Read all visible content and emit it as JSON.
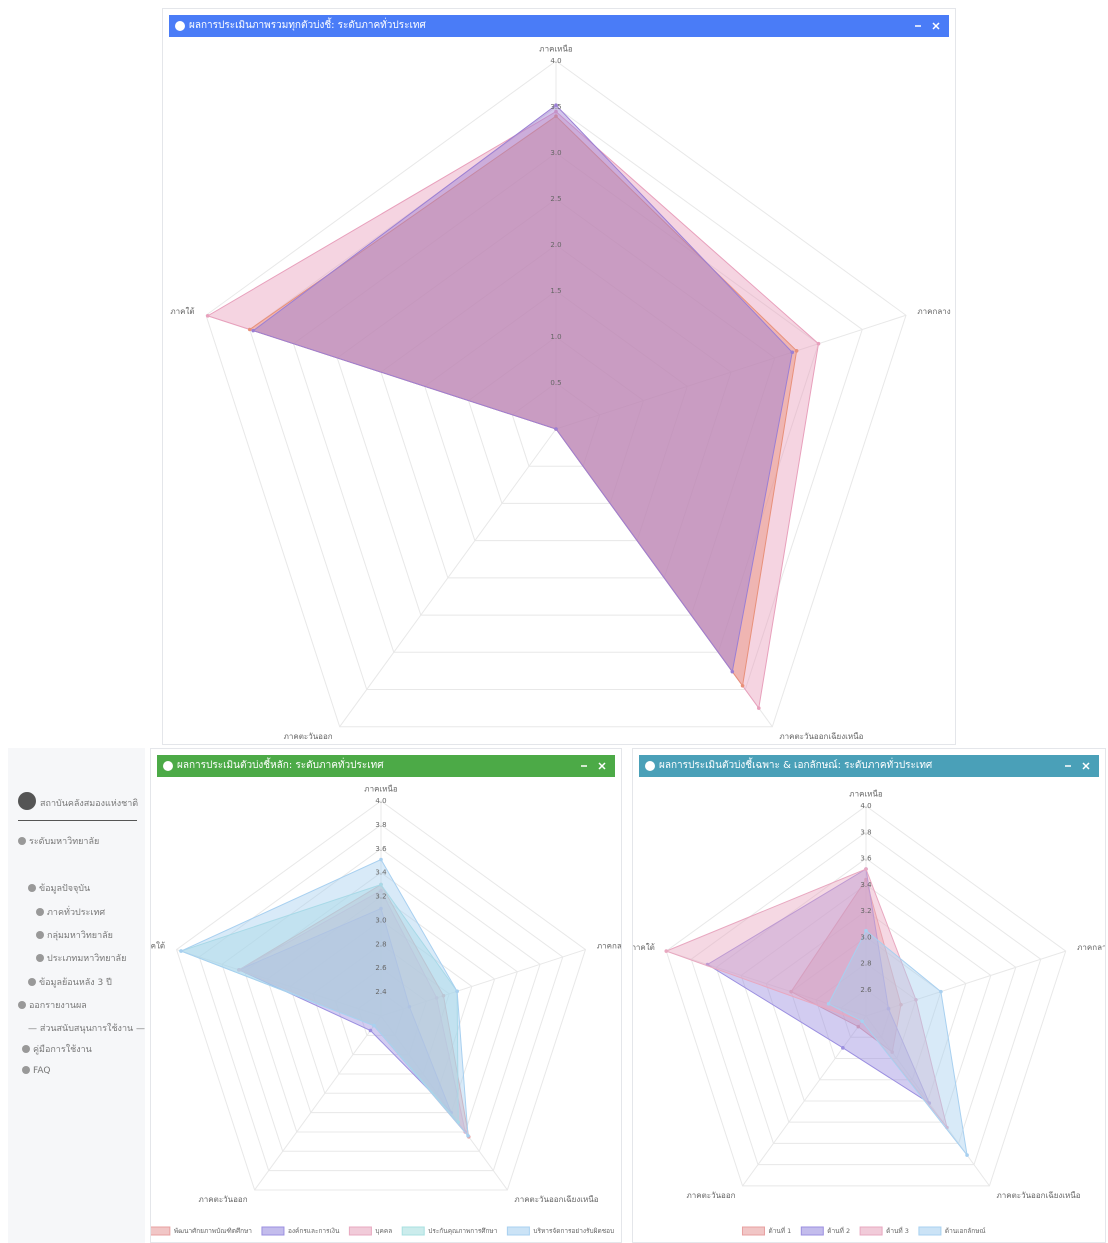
{
  "sidebar": {
    "org": "สถาบันคลังสมองแห่งชาติ",
    "level": "ระดับมหาวิทยาลัย",
    "items": [
      "ข้อมูลปัจจุบัน",
      "ภาคทั่วประเทศ",
      "กลุ่มมหาวิทยาลัย",
      "ประเภทมหาวิทยาลัย",
      "ข้อมูลย้อนหลัง 3 ปี",
      "ออกรายงานผล"
    ],
    "support_heading": "— ส่วนสนับสนุนการใช้งาน —",
    "support_items": [
      "คู่มือการใช้งาน",
      "FAQ"
    ]
  },
  "chart_data": [
    {
      "type": "radar",
      "title": "ผลการประเมินภาพรวมทุกตัวบ่งชี้: ระดับภาคทั่วประเทศ",
      "header_color": "#4a7cf7",
      "categories": [
        "ภาคเหนือ",
        "ภาคกลาง",
        "ภาคตะวันออกเฉียงเหนือ",
        "ภาคตะวันออก",
        "ภาคใต้"
      ],
      "ylim": [
        0,
        4
      ],
      "yticks": [
        0.5,
        {
          "value": 1,
          "label": "1.0"
        },
        1.5,
        {
          "value": 2,
          "label": "2.0"
        },
        2.5,
        {
          "value": 3,
          "label": "3.0"
        },
        3.5,
        {
          "value": 4,
          "label": "4.0"
        }
      ],
      "series": [
        {
          "color": "#e8a0bc",
          "values": [
            3.45,
            3.0,
            3.75,
            0,
            3.98
          ]
        },
        {
          "color": "#e8907a",
          "values": [
            3.4,
            2.75,
            3.45,
            0,
            3.5
          ]
        },
        {
          "color": "#9b7fd4",
          "values": [
            3.52,
            2.7,
            3.26,
            0,
            3.46
          ]
        }
      ]
    },
    {
      "type": "radar",
      "title": "ผลการประเมินตัวบ่งชี้หลัก: ระดับภาคทั่วประเทศ",
      "header_color": "#4caa47",
      "categories": [
        "ภาคเหนือ",
        "ภาคกลาง",
        "ภาคตะวันออกเฉียงเหนือ",
        "ภาคตะวันออก",
        "ภาคใต้"
      ],
      "ylim": [
        2.2,
        4
      ],
      "yticks": [
        2.4,
        2.6,
        2.8,
        {
          "value": 3,
          "label": "3.0"
        },
        3.2,
        3.4,
        3.6,
        3.8,
        {
          "value": 4,
          "label": "4.0"
        }
      ],
      "series": [
        {
          "name": "พัฒนาศักยภาพบัณฑิตศึกษา",
          "color": "#e8a0a0",
          "values": [
            3.3,
            2.75,
            3.45,
            2.3,
            3.45
          ]
        },
        {
          "name": "องค์กรและการเงิน",
          "color": "#9b8fe0",
          "values": [
            3.1,
            2.45,
            3.2,
            2.35,
            3.45
          ]
        },
        {
          "name": "บุคคล",
          "color": "#e8a8c0",
          "values": [
            3.25,
            2.69,
            3.4,
            2.3,
            3.45
          ]
        },
        {
          "name": "ประกันคุณภาพการศึกษา",
          "color": "#a8e0e0",
          "values": [
            3.3,
            2.87,
            3.3,
            2.3,
            3.96
          ]
        },
        {
          "name": "บริหารจัดการอย่างรับผิดชอบ",
          "color": "#a8d0f0",
          "values": [
            3.51,
            2.87,
            3.44,
            2.3,
            3.96
          ]
        }
      ]
    },
    {
      "type": "radar",
      "title": "ผลการประเมินตัวบ่งชี้เฉพาะ & เอกลักษณ์: ระดับภาคทั่วประเทศ",
      "header_color": "#4aa0b8",
      "categories": [
        "ภาคเหนือ",
        "ภาคกลาง",
        "ภาคตะวันออกเฉียงเหนือ",
        "ภาคตะวันออก",
        "ภาคใต้"
      ],
      "ylim": [
        2.4,
        4
      ],
      "yticks": [
        2.6,
        2.8,
        {
          "value": 3,
          "label": "3.0"
        },
        3.2,
        3.4,
        3.6,
        3.8,
        {
          "value": 4,
          "label": "4.0"
        }
      ],
      "series": [
        {
          "name": "ด้านที่ 1",
          "color": "#e8a0a0",
          "values": [
            3.44,
            2.68,
            2.74,
            2.5,
            3.0
          ]
        },
        {
          "name": "ด้านที่ 2",
          "color": "#9b8fe0",
          "values": [
            3.52,
            2.58,
            3.22,
            2.7,
            3.67
          ]
        },
        {
          "name": "ด้านที่ 3",
          "color": "#e8a8c0",
          "values": [
            3.52,
            2.8,
            3.45,
            2.45,
            4.0
          ]
        },
        {
          "name": "ด้านเอกลักษณ์",
          "color": "#a8d0f0",
          "values": [
            3.05,
            3.0,
            3.71,
            2.45,
            2.7
          ]
        }
      ]
    }
  ]
}
